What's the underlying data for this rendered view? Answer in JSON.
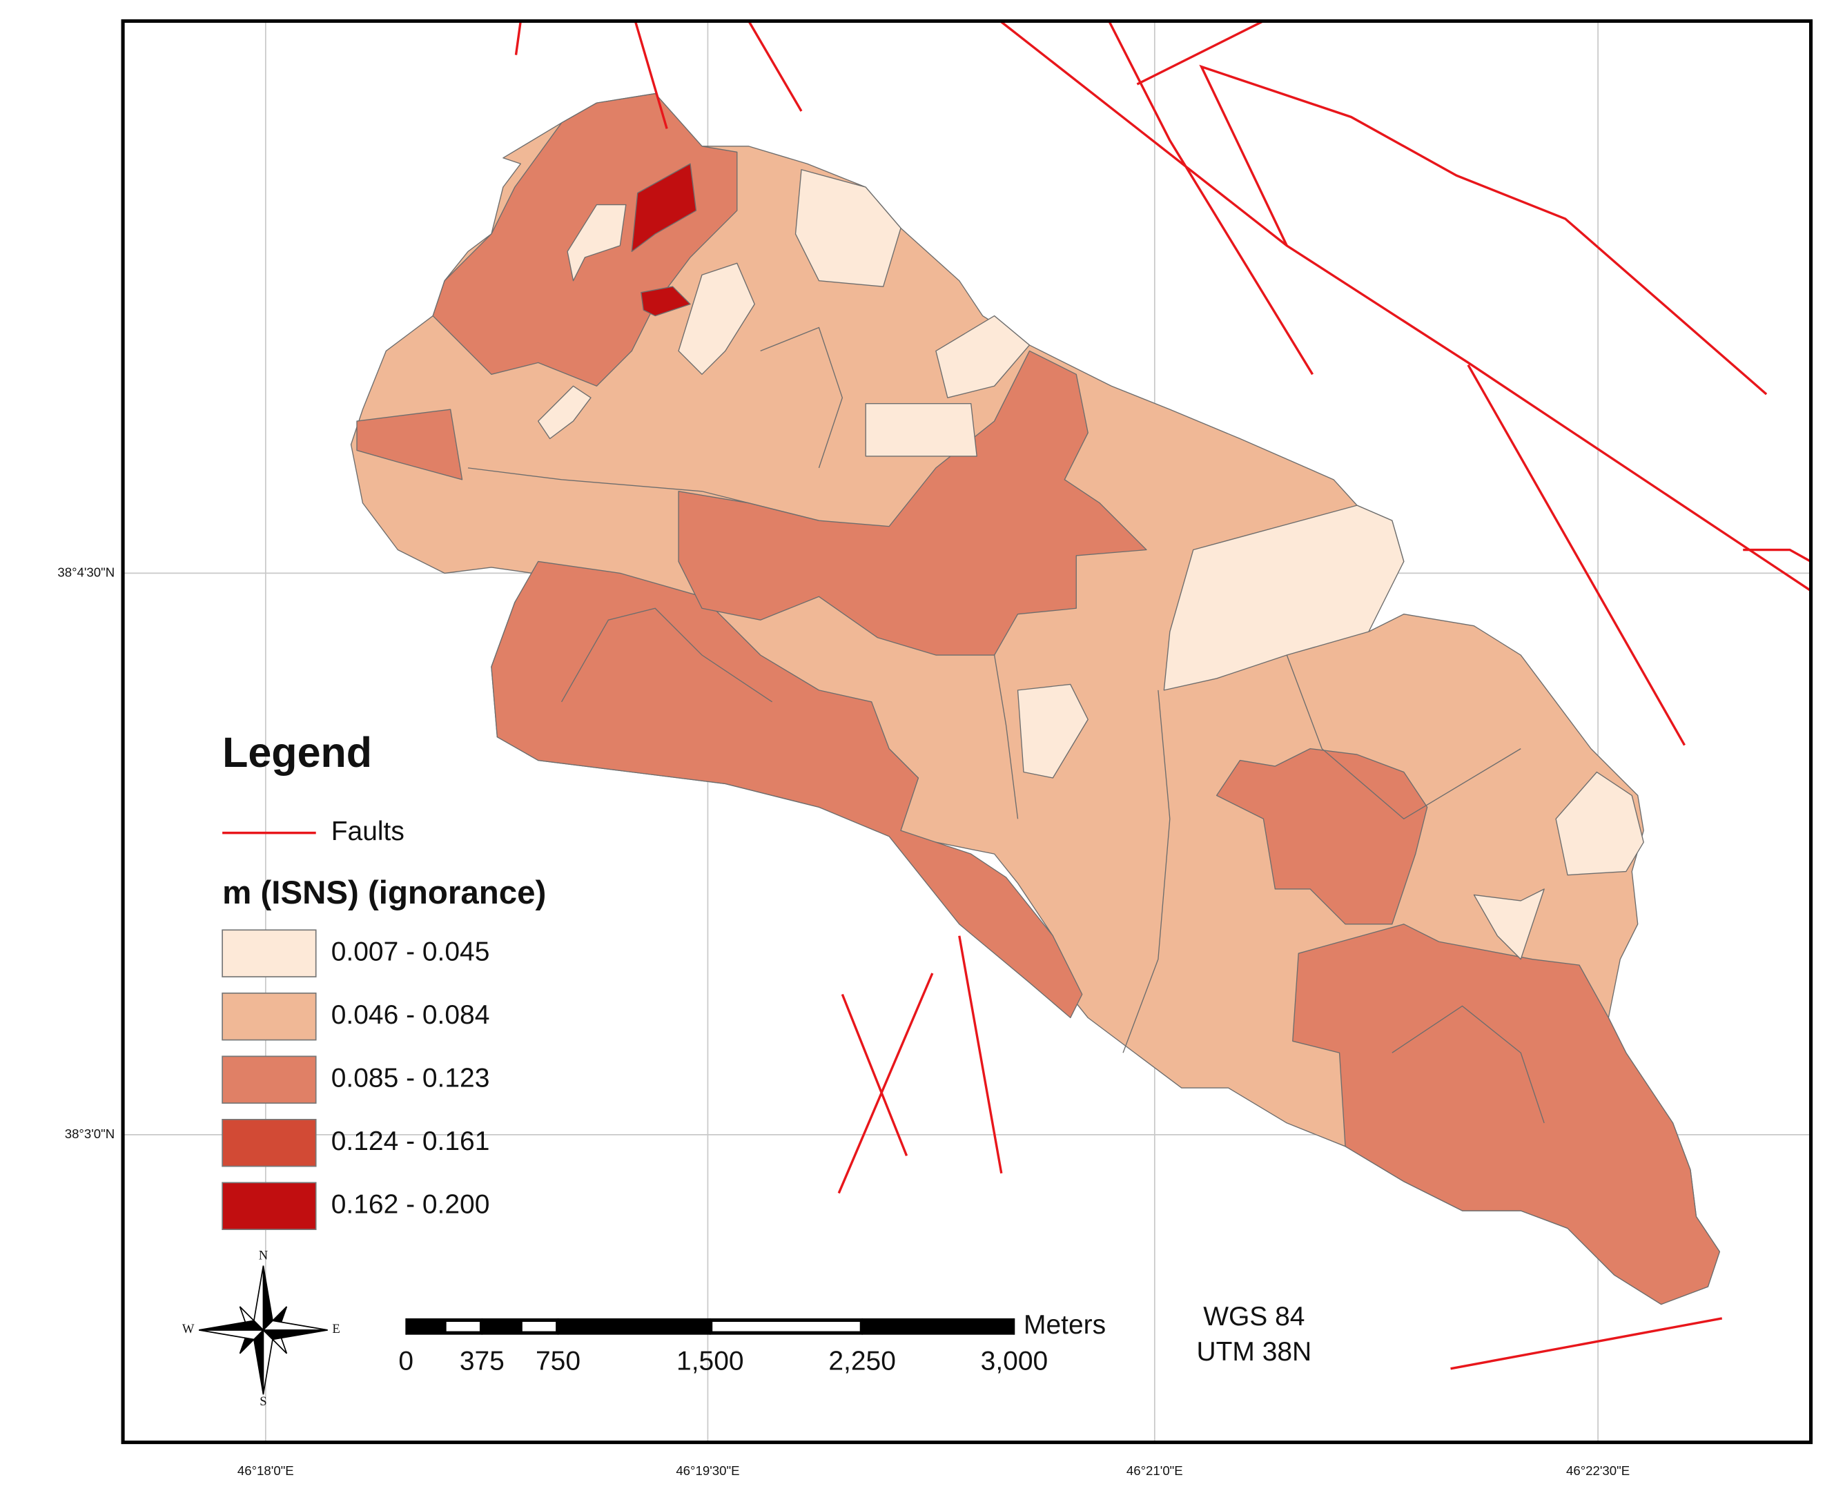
{
  "map": {
    "graticule": {
      "latitudes": [
        "38°4'30\"N",
        "38°3'0\"N"
      ],
      "longitudes": [
        "46°18'0\"E",
        "46°19'30\"E",
        "46°21'0\"E",
        "46°22'30\"E"
      ]
    },
    "legend": {
      "title": "Legend",
      "faults": {
        "label": "Faults",
        "color": "#e8161b"
      },
      "classes_title": "m (ISNS) (ignorance)",
      "classes": [
        {
          "label": "0.007 - 0.045",
          "color": "#fde9d8"
        },
        {
          "label": "0.046 - 0.084",
          "color": "#f0b896"
        },
        {
          "label": "0.085 - 0.123",
          "color": "#e08066"
        },
        {
          "label": "0.124 - 0.161",
          "color": "#d24a35"
        },
        {
          "label": "0.162 - 0.200",
          "color": "#c10e10"
        }
      ]
    },
    "scale_bar": {
      "unit": "Meters",
      "ticks": [
        0,
        375,
        750,
        {
          "value": 1500,
          "label": "1,500"
        },
        {
          "value": 2250,
          "label": "2,250"
        },
        {
          "value": 3000,
          "label": "3,000"
        }
      ]
    },
    "projection": [
      "WGS 84",
      "UTM 38N"
    ],
    "north_arrow": [
      "N",
      "S",
      "E",
      "W"
    ]
  }
}
